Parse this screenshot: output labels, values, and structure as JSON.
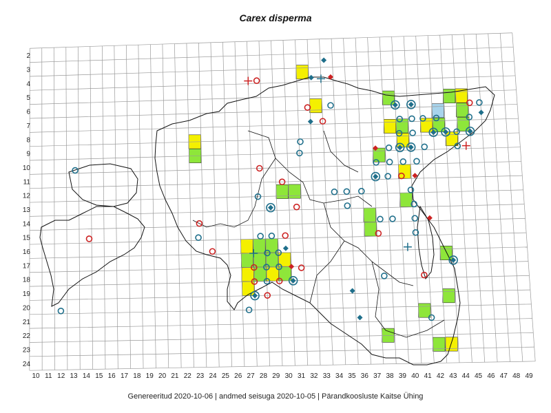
{
  "title": "Carex disperma",
  "footer": "Genereeritud 2020-10-06  |  andmed seisuga 2020-10-05  |  Pärandkoosluste Kaitse Ühing",
  "grid": {
    "columns": [
      10,
      11,
      12,
      13,
      14,
      15,
      16,
      17,
      18,
      19,
      20,
      21,
      22,
      23,
      24,
      25,
      26,
      27,
      28,
      29,
      30,
      31,
      32,
      33,
      34,
      35,
      36,
      37,
      38,
      39,
      40,
      41,
      42,
      43,
      44,
      45,
      46,
      47,
      48,
      49
    ],
    "rows": [
      2,
      3,
      4,
      5,
      6,
      7,
      8,
      9,
      10,
      11,
      12,
      13,
      14,
      15,
      16,
      17,
      18,
      19,
      20,
      21,
      22,
      23,
      24
    ]
  },
  "colors": {
    "grid": "#9a9a9a",
    "outline": "#111111",
    "cell_green": "#8ee63a",
    "cell_yellow": "#f4f000",
    "cell_blue": "#a8d4ec",
    "teal": "#1f6f8b",
    "red": "#cc2222"
  },
  "cells": [
    {
      "col": 23,
      "row": 8.5,
      "fill": "yellow"
    },
    {
      "col": 23,
      "row": 9.5,
      "fill": "green"
    },
    {
      "col": 32,
      "row": 3.8,
      "fill": "yellow"
    },
    {
      "col": 33,
      "row": 6.2,
      "fill": "yellow"
    },
    {
      "col": 39,
      "row": 5.8,
      "fill": "green"
    },
    {
      "col": 39,
      "row": 7.8,
      "fill": "yellow"
    },
    {
      "col": 38,
      "row": 9.8,
      "fill": "green"
    },
    {
      "col": 40,
      "row": 8.8,
      "fill": "yellow"
    },
    {
      "col": 40,
      "row": 7.8,
      "fill": "green"
    },
    {
      "col": 42,
      "row": 7.8,
      "fill": "yellow"
    },
    {
      "col": 43,
      "row": 7.8,
      "fill": "green"
    },
    {
      "col": 43,
      "row": 6.8,
      "fill": "blue"
    },
    {
      "col": 44,
      "row": 8.8,
      "fill": "yellow"
    },
    {
      "col": 45,
      "row": 7.8,
      "fill": "green"
    },
    {
      "col": 45,
      "row": 6.8,
      "fill": "green"
    },
    {
      "col": 45,
      "row": 5.8,
      "fill": "yellow"
    },
    {
      "col": 44,
      "row": 5.8,
      "fill": "green"
    },
    {
      "col": 40,
      "row": 11,
      "fill": "yellow"
    },
    {
      "col": 31,
      "row": 12.2,
      "fill": "green"
    },
    {
      "col": 30,
      "row": 12.2,
      "fill": "green"
    },
    {
      "col": 37,
      "row": 14,
      "fill": "green"
    },
    {
      "col": 37,
      "row": 15,
      "fill": "green"
    },
    {
      "col": 40,
      "row": 13,
      "fill": "green"
    },
    {
      "col": 27,
      "row": 16,
      "fill": "yellow"
    },
    {
      "col": 28,
      "row": 16,
      "fill": "green"
    },
    {
      "col": 29,
      "row": 16,
      "fill": "green"
    },
    {
      "col": 28,
      "row": 17,
      "fill": "green"
    },
    {
      "col": 29,
      "row": 17,
      "fill": "green"
    },
    {
      "col": 30,
      "row": 17,
      "fill": "yellow"
    },
    {
      "col": 27,
      "row": 17,
      "fill": "green"
    },
    {
      "col": 27,
      "row": 18,
      "fill": "yellow"
    },
    {
      "col": 28,
      "row": 18,
      "fill": "green"
    },
    {
      "col": 29,
      "row": 18,
      "fill": "yellow"
    },
    {
      "col": 27,
      "row": 19,
      "fill": "yellow"
    },
    {
      "col": 30,
      "row": 18,
      "fill": "green"
    },
    {
      "col": 43,
      "row": 16.8,
      "fill": "green"
    },
    {
      "col": 41,
      "row": 20.8,
      "fill": "green"
    },
    {
      "col": 38,
      "row": 22.5,
      "fill": "green"
    },
    {
      "col": 42,
      "row": 23.2,
      "fill": "green"
    },
    {
      "col": 43,
      "row": 23.2,
      "fill": "yellow"
    },
    {
      "col": 43,
      "row": 19.8,
      "fill": "green"
    }
  ],
  "markers": [
    {
      "col": 27.5,
      "row": 4.3,
      "type": "red-plus"
    },
    {
      "col": 28.2,
      "row": 4.3,
      "type": "red-circle"
    },
    {
      "col": 33.5,
      "row": 4.3,
      "type": "teal-plus"
    },
    {
      "col": 34.3,
      "row": 4.2,
      "type": "red-diamond"
    },
    {
      "col": 33.8,
      "row": 3.0,
      "type": "teal-diamond"
    },
    {
      "col": 32.7,
      "row": 4.2,
      "type": "teal-diamond"
    },
    {
      "col": 32.3,
      "row": 6.3,
      "type": "red-circle"
    },
    {
      "col": 34.2,
      "row": 6.2,
      "type": "teal-circle"
    },
    {
      "col": 33.5,
      "row": 7.3,
      "type": "red-circle"
    },
    {
      "col": 32.5,
      "row": 7.3,
      "type": "teal-diamond"
    },
    {
      "col": 31.6,
      "row": 8.7,
      "type": "teal-circle"
    },
    {
      "col": 31.5,
      "row": 9.5,
      "type": "teal-circle"
    },
    {
      "col": 13.2,
      "row": 10.3,
      "type": "teal-circle"
    },
    {
      "col": 28.2,
      "row": 10.5,
      "type": "red-circle"
    },
    {
      "col": 30.0,
      "row": 11.5,
      "type": "red-circle"
    },
    {
      "col": 28.0,
      "row": 12.5,
      "type": "teal-circle"
    },
    {
      "col": 29.0,
      "row": 13.3,
      "type": "teal-ring-diamond"
    },
    {
      "col": 31.1,
      "row": 13.3,
      "type": "red-circle"
    },
    {
      "col": 14.3,
      "row": 15.2,
      "type": "red-circle"
    },
    {
      "col": 23.2,
      "row": 14.3,
      "type": "red-circle"
    },
    {
      "col": 23.1,
      "row": 15.3,
      "type": "teal-circle"
    },
    {
      "col": 24.2,
      "row": 16.3,
      "type": "red-circle"
    },
    {
      "col": 28.1,
      "row": 15.3,
      "type": "teal-circle"
    },
    {
      "col": 29.0,
      "row": 15.3,
      "type": "teal-circle"
    },
    {
      "col": 30.1,
      "row": 15.3,
      "type": "red-circle"
    },
    {
      "col": 30.1,
      "row": 16.2,
      "type": "teal-diamond"
    },
    {
      "col": 27.5,
      "row": 16.5,
      "type": "teal-plus"
    },
    {
      "col": 28.6,
      "row": 16.5,
      "type": "teal-circle"
    },
    {
      "col": 29.5,
      "row": 16.5,
      "type": "teal-circle"
    },
    {
      "col": 27.5,
      "row": 17.5,
      "type": "red-circle"
    },
    {
      "col": 28.5,
      "row": 17.5,
      "type": "teal-circle"
    },
    {
      "col": 29.5,
      "row": 17.5,
      "type": "teal-circle"
    },
    {
      "col": 30.5,
      "row": 17.5,
      "type": "red-diamond"
    },
    {
      "col": 31.3,
      "row": 17.6,
      "type": "red-circle"
    },
    {
      "col": 27.5,
      "row": 18.5,
      "type": "red-circle"
    },
    {
      "col": 28.5,
      "row": 18.5,
      "type": "teal-circle"
    },
    {
      "col": 29.5,
      "row": 18.5,
      "type": "red-circle"
    },
    {
      "col": 30.6,
      "row": 18.5,
      "type": "teal-ring-diamond"
    },
    {
      "col": 27.5,
      "row": 19.5,
      "type": "teal-ring-diamond"
    },
    {
      "col": 28.5,
      "row": 19.5,
      "type": "red-circle"
    },
    {
      "col": 12.0,
      "row": 20.3,
      "type": "teal-circle"
    },
    {
      "col": 27.0,
      "row": 20.5,
      "type": "teal-circle"
    },
    {
      "col": 35.3,
      "row": 19.3,
      "type": "teal-diamond"
    },
    {
      "col": 35.8,
      "row": 21.2,
      "type": "teal-diamond"
    },
    {
      "col": 37.9,
      "row": 18.3,
      "type": "teal-circle"
    },
    {
      "col": 41.1,
      "row": 18.3,
      "type": "red-circle"
    },
    {
      "col": 41.5,
      "row": 21.3,
      "type": "teal-circle"
    },
    {
      "col": 43.5,
      "row": 17.3,
      "type": "teal-ring-diamond"
    },
    {
      "col": 39.9,
      "row": 16.3,
      "type": "teal-plus"
    },
    {
      "col": 37.6,
      "row": 15.3,
      "type": "red-circle"
    },
    {
      "col": 40.6,
      "row": 15.3,
      "type": "teal-circle"
    },
    {
      "col": 37.8,
      "row": 14.3,
      "type": "teal-circle"
    },
    {
      "col": 38.8,
      "row": 14.3,
      "type": "teal-circle"
    },
    {
      "col": 40.6,
      "row": 14.3,
      "type": "teal-circle"
    },
    {
      "col": 41.8,
      "row": 14.3,
      "type": "red-diamond"
    },
    {
      "col": 40.6,
      "row": 13.3,
      "type": "teal-circle"
    },
    {
      "col": 35.2,
      "row": 13.3,
      "type": "teal-circle"
    },
    {
      "col": 34.2,
      "row": 12.3,
      "type": "teal-circle"
    },
    {
      "col": 35.2,
      "row": 12.3,
      "type": "teal-circle"
    },
    {
      "col": 36.4,
      "row": 12.3,
      "type": "teal-circle"
    },
    {
      "col": 37.6,
      "row": 11.3,
      "type": "teal-ring-diamond"
    },
    {
      "col": 38.6,
      "row": 11.3,
      "type": "teal-circle"
    },
    {
      "col": 39.7,
      "row": 11.3,
      "type": "red-circle"
    },
    {
      "col": 40.8,
      "row": 11.3,
      "type": "red-diamond"
    },
    {
      "col": 37.7,
      "row": 10.3,
      "type": "teal-circle"
    },
    {
      "col": 38.8,
      "row": 10.3,
      "type": "teal-circle"
    },
    {
      "col": 39.9,
      "row": 10.3,
      "type": "teal-circle"
    },
    {
      "col": 41.0,
      "row": 10.3,
      "type": "teal-circle"
    },
    {
      "col": 37.7,
      "row": 9.3,
      "type": "red-diamond"
    },
    {
      "col": 38.8,
      "row": 9.3,
      "type": "teal-circle"
    },
    {
      "col": 39.7,
      "row": 9.3,
      "type": "teal-ring-diamond"
    },
    {
      "col": 40.6,
      "row": 9.3,
      "type": "teal-ring-diamond"
    },
    {
      "col": 41.7,
      "row": 9.3,
      "type": "teal-circle"
    },
    {
      "col": 39.7,
      "row": 8.3,
      "type": "teal-circle"
    },
    {
      "col": 40.8,
      "row": 8.3,
      "type": "teal-circle"
    },
    {
      "col": 42.5,
      "row": 8.3,
      "type": "teal-ring-diamond"
    },
    {
      "col": 43.5,
      "row": 8.3,
      "type": "teal-ring-diamond"
    },
    {
      "col": 44.4,
      "row": 8.3,
      "type": "teal-circle"
    },
    {
      "col": 45.5,
      "row": 8.3,
      "type": "teal-ring-diamond"
    },
    {
      "col": 39.8,
      "row": 7.3,
      "type": "teal-circle"
    },
    {
      "col": 40.8,
      "row": 7.3,
      "type": "teal-circle"
    },
    {
      "col": 41.7,
      "row": 7.3,
      "type": "teal-circle"
    },
    {
      "col": 42.8,
      "row": 7.3,
      "type": "teal-circle"
    },
    {
      "col": 45.5,
      "row": 7.3,
      "type": "teal-circle"
    },
    {
      "col": 46.5,
      "row": 7.0,
      "type": "teal-diamond"
    },
    {
      "col": 39.5,
      "row": 6.3,
      "type": "teal-ring-diamond"
    },
    {
      "col": 40.8,
      "row": 6.3,
      "type": "teal-ring-diamond"
    },
    {
      "col": 45.6,
      "row": 6.3,
      "type": "red-circle"
    },
    {
      "col": 46.4,
      "row": 6.3,
      "type": "teal-circle"
    },
    {
      "col": 45.1,
      "row": 9.3,
      "type": "red-plus"
    },
    {
      "col": 44.4,
      "row": 9.3,
      "type": "teal-circle"
    },
    {
      "col": 40.4,
      "row": 12.3,
      "type": "teal-circle"
    }
  ]
}
